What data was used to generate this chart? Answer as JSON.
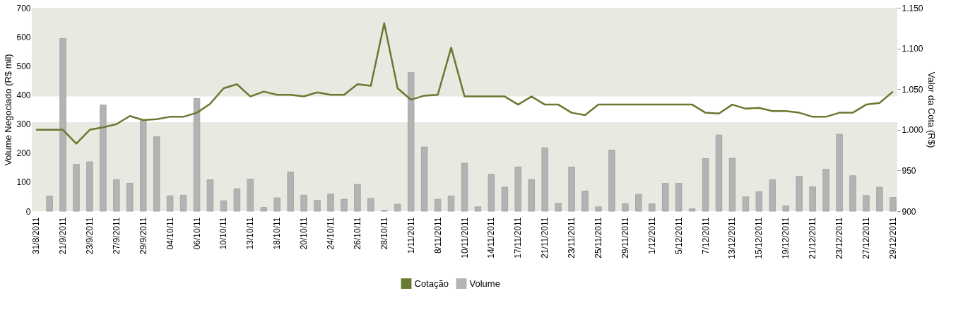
{
  "chart_data": {
    "type": "bar",
    "xlabel": null,
    "ylabel": "Volume Negociado (R$ mil)",
    "y2label": "Valor da Cota (R$)",
    "categories": [
      "31/8/2011",
      null,
      "21/9/2011",
      null,
      "23/9/2011",
      null,
      "27/9/2011",
      null,
      "29/9/2011",
      null,
      "04/10/11",
      null,
      "06/10/11",
      null,
      "10/10/11",
      null,
      "13/10/11",
      null,
      "18/10/11",
      null,
      "20/10/11",
      null,
      "24/10/11",
      null,
      "26/10/11",
      null,
      "28/10/11",
      null,
      "1/11/2011",
      null,
      "8/11/2011",
      null,
      "10/11/2011",
      null,
      "14/11/2011",
      null,
      "17/11/2011",
      null,
      "21/11/2011",
      null,
      "23/11/2011",
      null,
      "25/11/2011",
      null,
      "29/11/2011",
      null,
      "1/12/2011",
      null,
      "5/12/2011",
      null,
      "7/12/2011",
      null,
      "13/12/2011",
      null,
      "15/12/2011",
      null,
      "19/12/2011",
      null,
      "21/12/2011",
      null,
      "23/12/2011",
      null,
      "27/12/2011",
      null,
      "29/12/2011"
    ],
    "series": [
      {
        "name": "Cotação",
        "type": "line",
        "axis": "y2",
        "color": "#667a30",
        "values": [
          1000,
          1000,
          1000,
          983,
          1000,
          1003,
          1007,
          1017,
          1012,
          1013,
          1016,
          1016,
          1021,
          1032,
          1051,
          1056,
          1041,
          1047,
          1043,
          1043,
          1041,
          1046,
          1043,
          1043,
          1056,
          1054,
          1131,
          1051,
          1037,
          1042,
          1043,
          1101,
          1041,
          1041,
          1041,
          1041,
          1031,
          1041,
          1031,
          1031,
          1021,
          1018,
          1031,
          1031,
          1031,
          1031,
          1031,
          1031,
          1031,
          1031,
          1021,
          1020,
          1031,
          1026,
          1027,
          1023,
          1023,
          1021,
          1016,
          1016,
          1021,
          1021,
          1031,
          1033,
          1047
        ]
      },
      {
        "name": "Volume",
        "color": "#b3b3b3",
        "values": [
          null,
          52,
          594,
          161,
          170,
          365,
          108,
          96,
          312,
          256,
          53,
          55,
          388,
          108,
          36,
          77,
          110,
          13,
          46,
          135,
          55,
          37,
          59,
          41,
          92,
          44,
          3,
          24,
          477,
          221,
          41,
          52,
          165,
          15,
          127,
          83,
          152,
          109,
          218,
          27,
          152,
          69,
          15,
          210,
          26,
          58,
          25,
          96,
          96,
          8,
          181,
          262,
          182,
          49,
          67,
          108,
          18,
          120,
          84,
          144,
          265,
          122,
          54,
          82,
          47
        ]
      }
    ],
    "ylim": [
      0,
      700
    ],
    "yticks": [
      0,
      100,
      200,
      300,
      400,
      500,
      600,
      700
    ],
    "y2lim": [
      900,
      1150
    ],
    "y2ticks": [
      900,
      950,
      {
        "value": 1000,
        "label": "1.000"
      },
      {
        "value": 1050,
        "label": "1.050"
      },
      {
        "value": 1100,
        "label": "1.100"
      },
      {
        "value": 1150,
        "label": "1.150"
      }
    ],
    "bands": [
      {
        "axis": "y",
        "from": 0,
        "to": 306,
        "color": "#e8e9e0"
      },
      {
        "axis": "y",
        "from": 395,
        "to": 700,
        "color": "#e8e9e0"
      }
    ],
    "legend": "bottom",
    "grid": false,
    "marker": "none",
    "line_style": "solid"
  }
}
